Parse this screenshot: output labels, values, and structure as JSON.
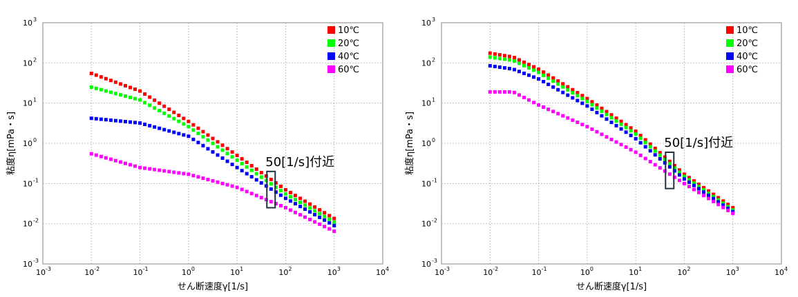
{
  "chart_data": [
    {
      "type": "scatter",
      "xscale": "log",
      "yscale": "log",
      "xlim_exp": [
        -3,
        4
      ],
      "ylim_exp": [
        -3,
        3
      ],
      "x_ticks": [
        "10",
        "10",
        "10",
        "10",
        "10",
        "10",
        "10",
        "10"
      ],
      "x_tick_exps": [
        "-3",
        "-2",
        "-1",
        "0",
        "1",
        "2",
        "3",
        "4"
      ],
      "y_ticks": [
        "10",
        "10",
        "10",
        "10",
        "10",
        "10",
        "10"
      ],
      "y_tick_exps": [
        "-3",
        "-2",
        "-1",
        "0",
        "1",
        "2",
        "3"
      ],
      "xlabel": "せん断速度γ[1/s]",
      "ylabel": "粘度η[mPa・s]",
      "grid": true,
      "legend_position": "top-right",
      "annotation": {
        "text": "50[1/s]付近",
        "x": 50,
        "y_low": 0.025,
        "y_high": 0.2
      },
      "series": [
        {
          "name": "10℃",
          "color": "#ff0000",
          "curve": [
            [
              0.01,
              55
            ],
            [
              0.1,
              20
            ],
            [
              1,
              3.5
            ],
            [
              10,
              0.5
            ],
            [
              100,
              0.07
            ],
            [
              1000,
              0.0135
            ]
          ]
        },
        {
          "name": "20℃",
          "color": "#00ff00",
          "curve": [
            [
              0.01,
              25
            ],
            [
              0.1,
              12
            ],
            [
              1,
              2.6
            ],
            [
              10,
              0.38
            ],
            [
              100,
              0.055
            ],
            [
              1000,
              0.011
            ]
          ]
        },
        {
          "name": "40℃",
          "color": "#0000ff",
          "curve": [
            [
              0.01,
              4.2
            ],
            [
              0.1,
              3.2
            ],
            [
              1,
              1.5
            ],
            [
              10,
              0.25
            ],
            [
              100,
              0.043
            ],
            [
              1000,
              0.009
            ]
          ]
        },
        {
          "name": "60℃",
          "color": "#ff00ff",
          "curve": [
            [
              0.01,
              0.55
            ],
            [
              0.1,
              0.25
            ],
            [
              1,
              0.17
            ],
            [
              10,
              0.08
            ],
            [
              100,
              0.025
            ],
            [
              1000,
              0.0065
            ]
          ]
        }
      ]
    },
    {
      "type": "scatter",
      "xscale": "log",
      "yscale": "log",
      "xlim_exp": [
        -3,
        4
      ],
      "ylim_exp": [
        -3,
        3
      ],
      "x_ticks": [
        "10",
        "10",
        "10",
        "10",
        "10",
        "10",
        "10",
        "10"
      ],
      "x_tick_exps": [
        "-3",
        "-2",
        "-1",
        "0",
        "1",
        "2",
        "3",
        "4"
      ],
      "y_ticks": [
        "10",
        "10",
        "10",
        "10",
        "10",
        "10",
        "10"
      ],
      "y_tick_exps": [
        "-3",
        "-2",
        "-1",
        "0",
        "1",
        "2",
        "3"
      ],
      "xlabel": "せん断速度γ[1/s]",
      "ylabel": "粘度η[mPa・s]",
      "grid": true,
      "legend_position": "top-right",
      "annotation": {
        "text": "50[1/s]付近",
        "x": 50,
        "y_low": 0.075,
        "y_high": 0.6
      },
      "series": [
        {
          "name": "10℃",
          "color": "#ff0000",
          "curve": [
            [
              0.01,
              175
            ],
            [
              0.03,
              140
            ],
            [
              0.1,
              70
            ],
            [
              1,
              13
            ],
            [
              10,
              2
            ],
            [
              100,
              0.17
            ],
            [
              1000,
              0.025
            ]
          ]
        },
        {
          "name": "20℃",
          "color": "#00ff00",
          "curve": [
            [
              0.01,
              140
            ],
            [
              0.03,
              115
            ],
            [
              0.1,
              58
            ],
            [
              1,
              11
            ],
            [
              10,
              1.7
            ],
            [
              100,
              0.15
            ],
            [
              1000,
              0.022
            ]
          ]
        },
        {
          "name": "40℃",
          "color": "#0000ff",
          "curve": [
            [
              0.01,
              85
            ],
            [
              0.03,
              70
            ],
            [
              0.1,
              40
            ],
            [
              1,
              8.5
            ],
            [
              10,
              1.3
            ],
            [
              100,
              0.13
            ],
            [
              1000,
              0.02
            ]
          ]
        },
        {
          "name": "60℃",
          "color": "#ff00ff",
          "curve": [
            [
              0.01,
              19
            ],
            [
              0.03,
              19
            ],
            [
              0.1,
              9
            ],
            [
              1,
              2.6
            ],
            [
              10,
              0.6
            ],
            [
              100,
              0.1
            ],
            [
              1000,
              0.018
            ]
          ]
        }
      ]
    }
  ]
}
